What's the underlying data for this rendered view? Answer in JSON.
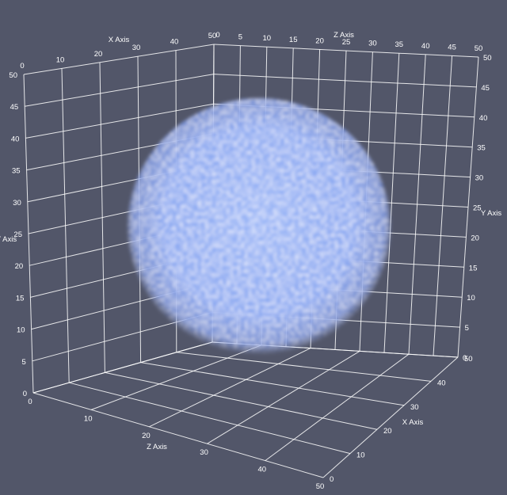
{
  "background_color": "#525669",
  "grid_color": "#ffffff",
  "volume": {
    "name": "sphere-volume",
    "color": "#7aa0f0"
  },
  "labels": {
    "top_x_axis": "X Axis",
    "top_z_axis": "Z Axis",
    "left_y_axis": "Y Axis",
    "right_y_axis": "Y Axis",
    "bottom_z_axis": "Z Axis",
    "bottom_x_axis": "X Axis"
  },
  "ticks": {
    "top_x": [
      "0",
      "10",
      "20",
      "30",
      "40",
      "50"
    ],
    "top_z": [
      "0",
      "5",
      "10",
      "15",
      "20",
      "25",
      "30",
      "35",
      "40",
      "45",
      "50"
    ],
    "left_y": [
      "0",
      "5",
      "10",
      "15",
      "20",
      "25",
      "30",
      "35",
      "40",
      "45",
      "50"
    ],
    "right_y": [
      "0",
      "5",
      "10",
      "15",
      "20",
      "25",
      "30",
      "35",
      "40",
      "45",
      "50"
    ],
    "bottom_z": [
      "0",
      "10",
      "20",
      "30",
      "40",
      "50"
    ],
    "bottom_x": [
      "0",
      "10",
      "20",
      "30",
      "40",
      "50"
    ]
  },
  "corner_labels": {
    "top_corner_x": "50",
    "top_corner_z": "0"
  }
}
